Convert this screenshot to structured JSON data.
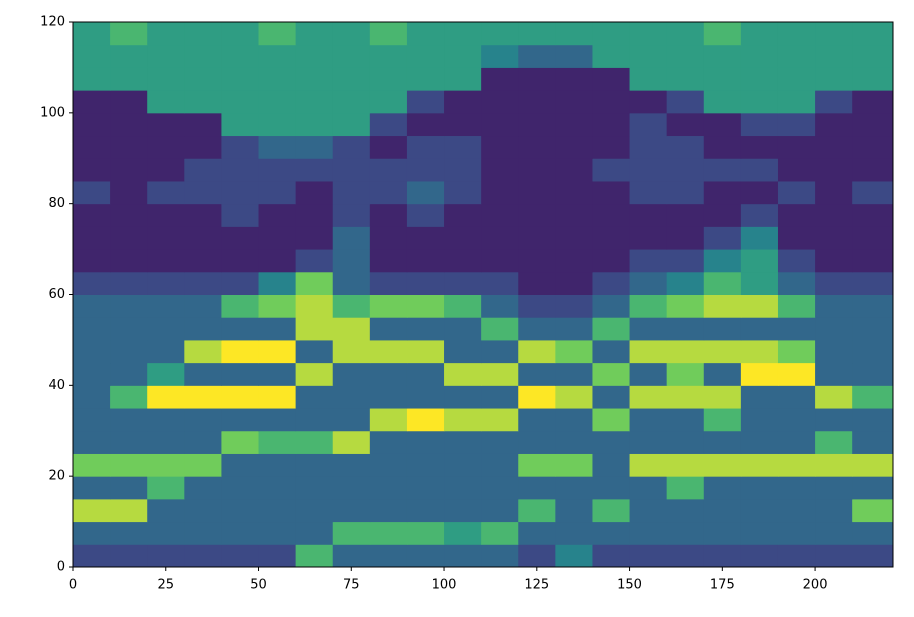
{
  "chart_data": {
    "type": "heatmap",
    "colormap": "viridis",
    "zlim": [
      0,
      9
    ],
    "xbins": [
      0,
      10,
      20,
      30,
      40,
      50,
      60,
      70,
      80,
      90,
      100,
      110,
      120,
      130,
      140,
      150,
      160,
      170,
      180,
      190,
      200,
      210,
      221
    ],
    "ybins": [
      0,
      5,
      10,
      15,
      20,
      25,
      30,
      35,
      40,
      45,
      50,
      55,
      60,
      65,
      70,
      75,
      80,
      85,
      90,
      95,
      100,
      105,
      110,
      115,
      120
    ],
    "z": [
      [
        2,
        2,
        2,
        2,
        2,
        2,
        6,
        3,
        3,
        3,
        3,
        3,
        2,
        4,
        2,
        2,
        2,
        2,
        2,
        2,
        2,
        2
      ],
      [
        3,
        3,
        3,
        3,
        3,
        3,
        3,
        6,
        6,
        6,
        5,
        6,
        3,
        3,
        3,
        3,
        3,
        3,
        3,
        3,
        3,
        3
      ],
      [
        8,
        8,
        3,
        3,
        3,
        3,
        3,
        3,
        3,
        3,
        3,
        3,
        6,
        3,
        6,
        3,
        3,
        3,
        3,
        3,
        3,
        7
      ],
      [
        3,
        3,
        6,
        3,
        3,
        3,
        3,
        3,
        3,
        3,
        3,
        3,
        3,
        3,
        3,
        3,
        6,
        3,
        3,
        3,
        3,
        3
      ],
      [
        7,
        7,
        7,
        7,
        3,
        3,
        3,
        3,
        3,
        3,
        3,
        3,
        7,
        7,
        3,
        8,
        8,
        8,
        8,
        8,
        8,
        8
      ],
      [
        3,
        3,
        3,
        3,
        7,
        6,
        6,
        8,
        3,
        3,
        3,
        3,
        3,
        3,
        3,
        3,
        3,
        3,
        3,
        3,
        6,
        3
      ],
      [
        3,
        3,
        3,
        3,
        3,
        3,
        3,
        3,
        8,
        9,
        8,
        8,
        3,
        3,
        7,
        3,
        3,
        6,
        3,
        3,
        3,
        3
      ],
      [
        3,
        6,
        9,
        9,
        9,
        9,
        3,
        3,
        3,
        3,
        3,
        3,
        9,
        8,
        3,
        8,
        8,
        8,
        3,
        3,
        8,
        6
      ],
      [
        3,
        3,
        5,
        3,
        3,
        3,
        8,
        3,
        3,
        3,
        8,
        8,
        3,
        3,
        7,
        3,
        7,
        3,
        9,
        9,
        3,
        3
      ],
      [
        3,
        3,
        3,
        8,
        9,
        9,
        3,
        8,
        8,
        8,
        3,
        3,
        8,
        7,
        3,
        8,
        8,
        8,
        8,
        7,
        3,
        3
      ],
      [
        3,
        3,
        3,
        3,
        3,
        3,
        8,
        8,
        3,
        3,
        3,
        6,
        3,
        3,
        6,
        3,
        3,
        3,
        3,
        3,
        3,
        3
      ],
      [
        3,
        3,
        3,
        3,
        6,
        7,
        8,
        6,
        7,
        7,
        6,
        3,
        2,
        2,
        3,
        6,
        7,
        8,
        8,
        6,
        3,
        3
      ],
      [
        2,
        2,
        2,
        2,
        2,
        4,
        7,
        3,
        2,
        2,
        2,
        2,
        1,
        1,
        2,
        3,
        4,
        6,
        5,
        3,
        2,
        2
      ],
      [
        1,
        1,
        1,
        1,
        1,
        1,
        2,
        3,
        1,
        1,
        1,
        1,
        1,
        1,
        1,
        2,
        2,
        4,
        5,
        2,
        1,
        1
      ],
      [
        1,
        1,
        1,
        1,
        1,
        1,
        1,
        3,
        1,
        1,
        1,
        1,
        1,
        1,
        1,
        1,
        1,
        2,
        4,
        1,
        1,
        1
      ],
      [
        1,
        1,
        1,
        1,
        2,
        1,
        1,
        2,
        1,
        2,
        1,
        1,
        1,
        1,
        1,
        1,
        1,
        1,
        2,
        1,
        1,
        1
      ],
      [
        2,
        1,
        2,
        2,
        2,
        2,
        1,
        2,
        2,
        3,
        2,
        1,
        1,
        1,
        1,
        2,
        2,
        1,
        1,
        2,
        1,
        2
      ],
      [
        1,
        1,
        1,
        2,
        2,
        2,
        2,
        2,
        2,
        2,
        2,
        1,
        1,
        1,
        2,
        2,
        2,
        2,
        2,
        1,
        1,
        1
      ],
      [
        1,
        1,
        1,
        1,
        2,
        3,
        3,
        2,
        1,
        2,
        2,
        1,
        1,
        1,
        1,
        2,
        2,
        1,
        1,
        1,
        1,
        1
      ],
      [
        1,
        1,
        1,
        1,
        5,
        5,
        5,
        5,
        2,
        1,
        1,
        1,
        1,
        1,
        1,
        2,
        1,
        1,
        2,
        2,
        1,
        1
      ],
      [
        1,
        1,
        5,
        5,
        5,
        5,
        5,
        5,
        5,
        2,
        1,
        1,
        1,
        1,
        1,
        1,
        2,
        5,
        5,
        5,
        2,
        1
      ],
      [
        5,
        5,
        5,
        5,
        5,
        5,
        5,
        5,
        5,
        5,
        5,
        1,
        1,
        1,
        1,
        5,
        5,
        5,
        5,
        5,
        5,
        5
      ],
      [
        5,
        5,
        5,
        5,
        5,
        5,
        5,
        5,
        5,
        5,
        5,
        4,
        3,
        3,
        5,
        5,
        5,
        5,
        5,
        5,
        5,
        5
      ],
      [
        5,
        6,
        5,
        5,
        5,
        6,
        5,
        5,
        6,
        5,
        5,
        5,
        5,
        5,
        5,
        5,
        5,
        6,
        5,
        5,
        5,
        5
      ]
    ],
    "xlim": [
      0,
      221
    ],
    "ylim": [
      0,
      120
    ],
    "xticks": [
      0,
      25,
      50,
      75,
      100,
      125,
      150,
      175,
      200
    ],
    "yticks": [
      0,
      20,
      40,
      60,
      80,
      100,
      120
    ]
  }
}
